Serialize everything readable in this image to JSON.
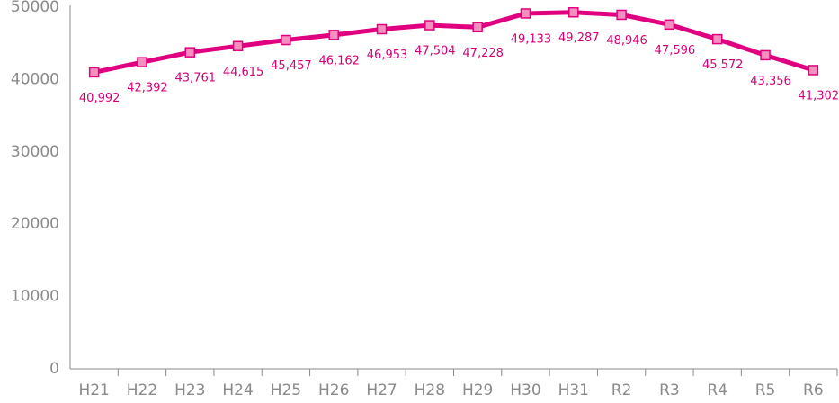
{
  "chart_data": {
    "type": "line",
    "categories": [
      "H21",
      "H22",
      "H23",
      "H24",
      "H25",
      "H26",
      "H27",
      "H28",
      "H29",
      "H30",
      "H31",
      "R2",
      "R3",
      "R4",
      "R5",
      "R6"
    ],
    "values": [
      40992,
      42392,
      43761,
      44615,
      45457,
      46162,
      46953,
      47504,
      47228,
      49133,
      49287,
      48946,
      47596,
      45572,
      43356,
      41302
    ],
    "value_labels": [
      "40,992",
      "42,392",
      "43,761",
      "44,615",
      "45,457",
      "46,162",
      "46,953",
      "47,504",
      "47,228",
      "49,133",
      "49,287",
      "48,946",
      "47,596",
      "45,572",
      "43,356",
      "41,302"
    ],
    "color": "#e0007f",
    "marker_color": "#f48fbf",
    "ylim": [
      0,
      50000
    ],
    "yticks": [
      0,
      10000,
      20000,
      30000,
      40000,
      50000
    ],
    "grid": false
  }
}
